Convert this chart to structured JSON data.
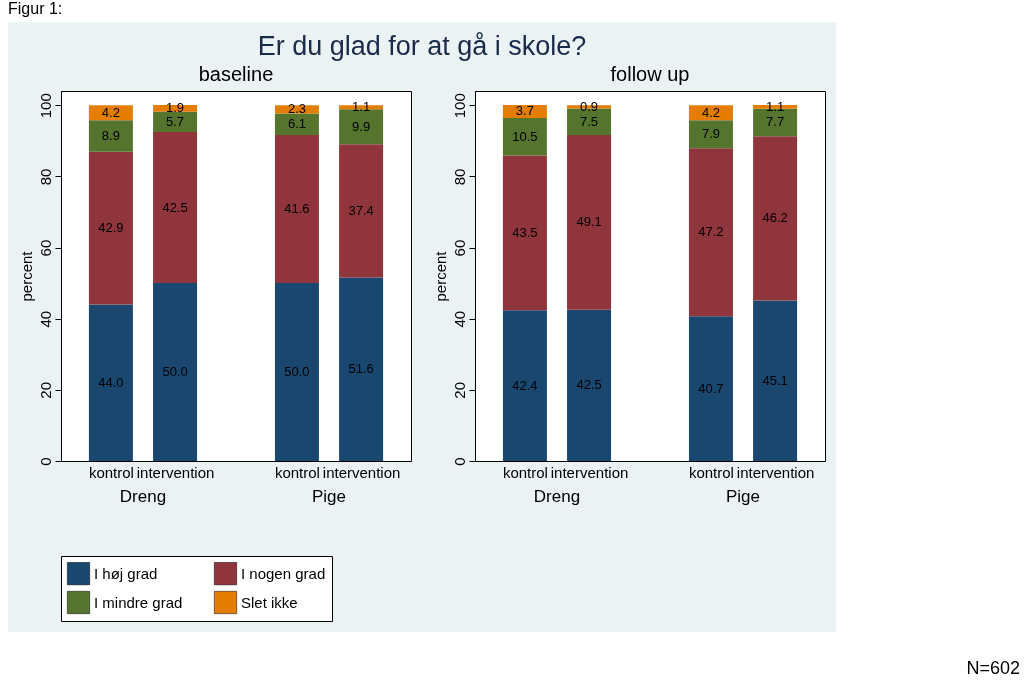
{
  "chart_data": [
    {
      "type": "bar",
      "title": "Er du glad for at gå i skole?",
      "subtitle": "baseline",
      "ylabel": "percent",
      "stacked": true,
      "legend": "bottom",
      "grid": false,
      "ylim": [
        0,
        104
      ],
      "yticks": [
        0,
        20,
        40,
        60,
        80,
        100
      ],
      "categories": [
        "kontrol",
        "intervention",
        "kontrol",
        "intervention"
      ],
      "annotations": [
        "Dreng",
        "Pige",
        "Figur 1:"
      ],
      "series": [
        {
          "name": "I høj grad",
          "color": "#1a476f",
          "values": [
            44.0,
            50.0,
            50.0,
            51.6
          ],
          "value_labels": [
            "44.0",
            "50.0",
            "50.0",
            "51.6"
          ]
        },
        {
          "name": "I nogen grad",
          "color": "#90353b",
          "values": [
            42.9,
            42.5,
            41.6,
            37.4
          ],
          "value_labels": [
            "42.9",
            "42.5",
            "41.6",
            "37.4"
          ]
        },
        {
          "name": "I mindre grad",
          "color": "#55752f",
          "values": [
            8.9,
            5.7,
            6.1,
            9.9
          ],
          "value_labels": [
            "8.9",
            "5.7",
            "6.1",
            "9.9"
          ]
        },
        {
          "name": "Slet ikke",
          "color": "#e37e00",
          "values": [
            4.2,
            1.9,
            2.3,
            1.1
          ],
          "value_labels": [
            "4.2",
            "1.9",
            "2.3",
            "1.1"
          ]
        }
      ]
    },
    {
      "type": "bar",
      "subtitle": "follow up",
      "ylabel": "percent",
      "stacked": true,
      "legend": "bottom",
      "grid": false,
      "ylim": [
        0,
        104
      ],
      "yticks": [
        0,
        20,
        40,
        60,
        80,
        100
      ],
      "categories": [
        "kontrol",
        "intervention",
        "kontrol",
        "intervention"
      ],
      "annotations": [
        "Dreng",
        "Pige",
        "N=602"
      ],
      "series": [
        {
          "name": "I høj grad",
          "color": "#1a476f",
          "values": [
            42.4,
            42.5,
            40.7,
            45.1
          ],
          "value_labels": [
            "42.4",
            "42.5",
            "40.7",
            "45.1"
          ]
        },
        {
          "name": "I nogen grad",
          "color": "#90353b",
          "values": [
            43.5,
            49.1,
            47.2,
            46.2
          ],
          "value_labels": [
            "43.5",
            "49.1",
            "47.2",
            "46.2"
          ]
        },
        {
          "name": "I mindre grad",
          "color": "#55752f",
          "values": [
            10.5,
            7.5,
            7.9,
            7.7
          ],
          "value_labels": [
            "10.5",
            "7.5",
            "7.9",
            "7.7"
          ]
        },
        {
          "name": "Slet ikke",
          "color": "#e37e00",
          "values": [
            3.7,
            0.9,
            4.2,
            1.1
          ],
          "value_labels": [
            "3.7",
            "0.9",
            "4.2",
            "1.1"
          ]
        }
      ]
    }
  ]
}
